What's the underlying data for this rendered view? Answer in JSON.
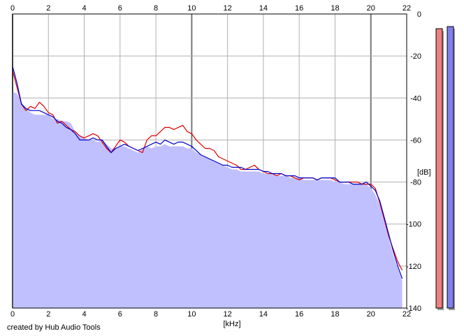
{
  "credit": "created by Hub Audio Tools",
  "chart_data": {
    "type": "area",
    "title": "",
    "xlabel": "[kHz]",
    "ylabel": "[dB]",
    "xlim": [
      0,
      22
    ],
    "ylim": [
      -140,
      0
    ],
    "x_ticks": [
      "0",
      "2",
      "4",
      "6",
      "8",
      "10",
      "12",
      "14",
      "16",
      "18",
      "20",
      "22"
    ],
    "y_ticks": [
      "0",
      "-20",
      "-40",
      "-60",
      "-80",
      "-100",
      "-120",
      "-140"
    ],
    "grid": true,
    "x_step": 0.25,
    "series": [
      {
        "color": "#dd0000",
        "values": [
          -27,
          -35,
          -43,
          -46,
          -44,
          -45,
          -42,
          -44,
          -47,
          -48,
          -52,
          -51,
          -53,
          -55,
          -56,
          -58,
          -59,
          -58,
          -57,
          -58,
          -61,
          -64,
          -66,
          -63,
          -60,
          -61,
          -63,
          -64,
          -65,
          -66,
          -60,
          -58,
          -58,
          -56,
          -54,
          -54,
          -55,
          -54,
          -53,
          -56,
          -57,
          -60,
          -62,
          -64,
          -64,
          -65,
          -68,
          -69,
          -70,
          -71,
          -72,
          -74,
          -74,
          -73,
          -72,
          -74,
          -75,
          -76,
          -76,
          -77,
          -76,
          -77,
          -77,
          -78,
          -79,
          -78,
          -78,
          -78,
          -79,
          -78,
          -78,
          -78,
          -79,
          -80,
          -80,
          -80,
          -80,
          -80,
          -81,
          -81,
          -81,
          -83,
          -90,
          -98,
          -106,
          -112,
          -118,
          -122
        ]
      },
      {
        "color": "#0000cc",
        "values": [
          -25,
          -33,
          -43,
          -45,
          -46,
          -46,
          -46,
          -47,
          -48,
          -49,
          -51,
          -52,
          -54,
          -55,
          -57,
          -60,
          -60,
          -60,
          -59,
          -60,
          -60,
          -63,
          -66,
          -64,
          -63,
          -62,
          -63,
          -64,
          -65,
          -64,
          -63,
          -62,
          -61,
          -62,
          -60,
          -61,
          -62,
          -61,
          -61,
          -62,
          -63,
          -65,
          -67,
          -68,
          -69,
          -70,
          -71,
          -72,
          -72,
          -73,
          -73,
          -73,
          -74,
          -74,
          -74,
          -74,
          -75,
          -75,
          -76,
          -76,
          -76,
          -77,
          -77,
          -77,
          -78,
          -78,
          -78,
          -78,
          -79,
          -78,
          -78,
          -78,
          -78,
          -80,
          -80,
          -80,
          -81,
          -81,
          -81,
          -80,
          -82,
          -84,
          -89,
          -97,
          -105,
          -113,
          -120,
          -126
        ]
      },
      {
        "color": "#c0c0ff",
        "values": [
          -37,
          -38,
          -42,
          -45,
          -47,
          -48,
          -48,
          -48,
          -48,
          -50,
          -50,
          -51,
          -51,
          -52,
          -56,
          -58,
          -59,
          -60,
          -60,
          -61,
          -60,
          -62,
          -64,
          -64,
          -63,
          -63,
          -64,
          -65,
          -66,
          -64,
          -63,
          -64,
          -63,
          -63,
          -62,
          -63,
          -63,
          -63,
          -63,
          -64,
          -64,
          -66,
          -67,
          -68,
          -69,
          -70,
          -71,
          -72,
          -73,
          -74,
          -74,
          -75,
          -75,
          -75,
          -75,
          -75,
          -76,
          -76,
          -76,
          -77,
          -77,
          -77,
          -78,
          -78,
          -78,
          -79,
          -79,
          -79,
          -79,
          -79,
          -79,
          -79,
          -80,
          -80,
          -81,
          -81,
          -81,
          -81,
          -81,
          -81,
          -83,
          -86,
          -91,
          -99,
          -107,
          -115,
          -121,
          -127
        ]
      }
    ],
    "level_meters": [
      {
        "color": "#f08080",
        "value_db": -7
      },
      {
        "color": "#8080ee",
        "value_db": -6
      }
    ]
  }
}
